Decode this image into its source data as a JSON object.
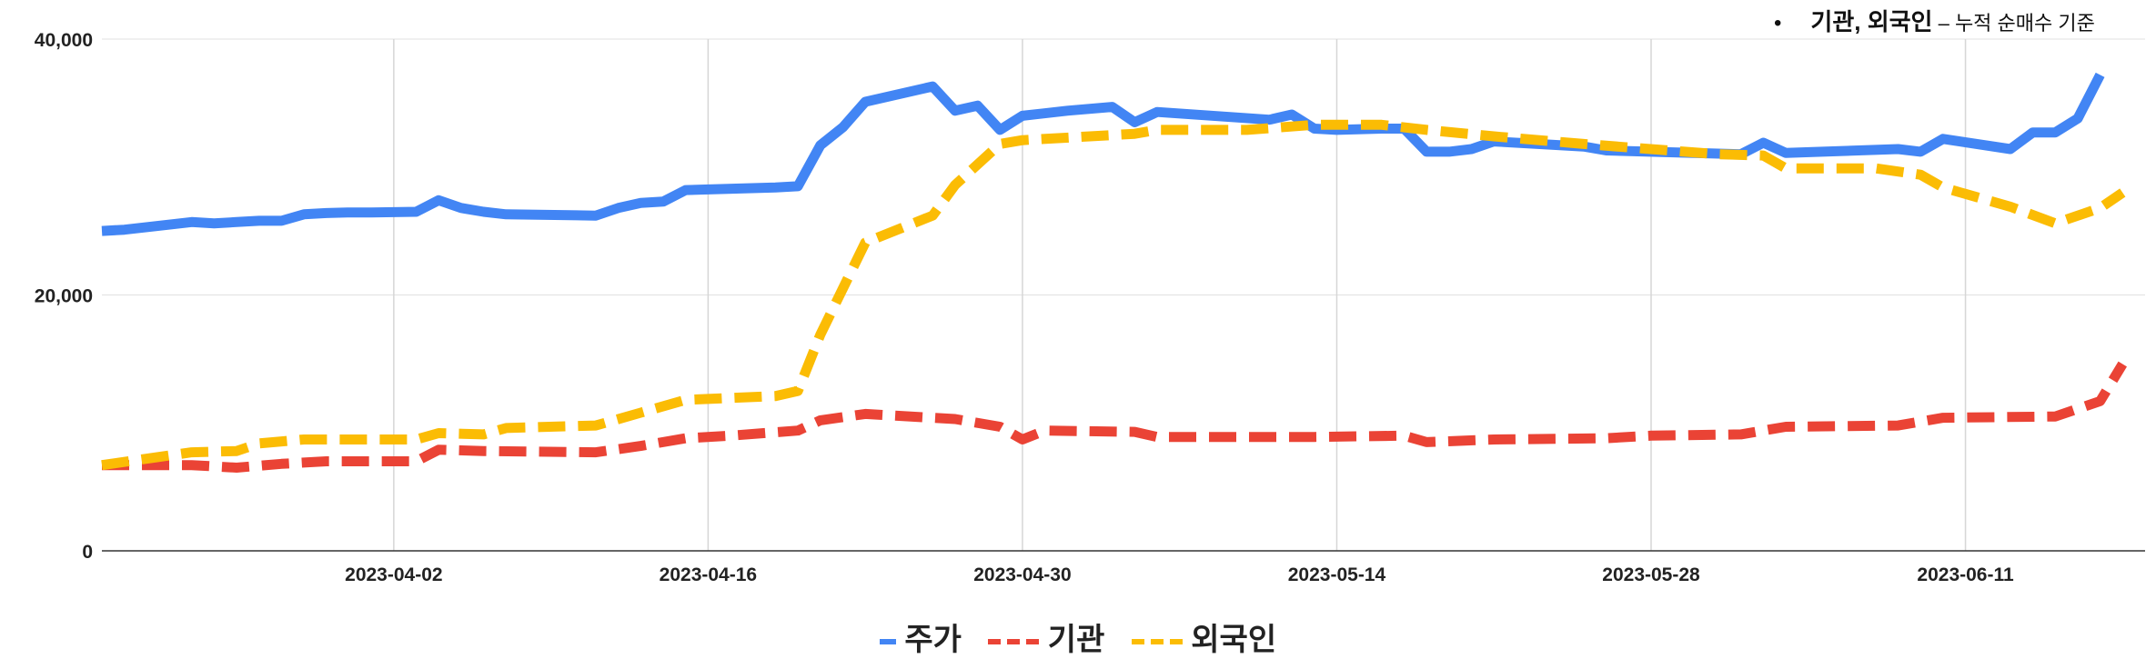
{
  "note": {
    "bullet": "•",
    "main": "기관, 외국인",
    "dash": " – ",
    "detail": "누적 순매수 기준"
  },
  "colors": {
    "stock": "#4285F4",
    "institution": "#EA4335",
    "foreign": "#FBBC04",
    "grid": "#e0e0e0"
  },
  "chart_data": {
    "type": "line",
    "x_axis": {
      "start": "2023-03-20",
      "end": "2023-06-19",
      "ticks": [
        "2023-04-02",
        "2023-04-16",
        "2023-04-30",
        "2023-05-14",
        "2023-05-28",
        "2023-06-11"
      ]
    },
    "y_axis": {
      "ylim": [
        0,
        40000
      ],
      "ticks": [
        0,
        20000,
        40000
      ],
      "tick_labels": [
        "0",
        "20,000",
        "40,000"
      ]
    },
    "grid": true,
    "legend_position": "bottom",
    "series": [
      {
        "name": "주가",
        "style": "solid",
        "points": [
          [
            "2023-03-20",
            25000
          ],
          [
            "2023-03-21",
            25100
          ],
          [
            "2023-03-24",
            25700
          ],
          [
            "2023-03-25",
            25600
          ],
          [
            "2023-03-26",
            25700
          ],
          [
            "2023-03-27",
            25800
          ],
          [
            "2023-03-28",
            25800
          ],
          [
            "2023-03-29",
            26300
          ],
          [
            "2023-03-30",
            26400
          ],
          [
            "2023-03-31",
            26450
          ],
          [
            "2023-04-01",
            26450
          ],
          [
            "2023-04-03",
            26500
          ],
          [
            "2023-04-04",
            27400
          ],
          [
            "2023-04-05",
            26800
          ],
          [
            "2023-04-06",
            26500
          ],
          [
            "2023-04-07",
            26300
          ],
          [
            "2023-04-11",
            26200
          ],
          [
            "2023-04-12",
            26800
          ],
          [
            "2023-04-13",
            27200
          ],
          [
            "2023-04-14",
            27300
          ],
          [
            "2023-04-15",
            28200
          ],
          [
            "2023-04-19",
            28400
          ],
          [
            "2023-04-20",
            28500
          ],
          [
            "2023-04-21",
            31700
          ],
          [
            "2023-04-22",
            33100
          ],
          [
            "2023-04-23",
            35100
          ],
          [
            "2023-04-26",
            36300
          ],
          [
            "2023-04-27",
            34400
          ],
          [
            "2023-04-28",
            34800
          ],
          [
            "2023-04-29",
            32900
          ],
          [
            "2023-04-30",
            34000
          ],
          [
            "2023-05-02",
            34400
          ],
          [
            "2023-05-04",
            34700
          ],
          [
            "2023-05-05",
            33500
          ],
          [
            "2023-05-06",
            34300
          ],
          [
            "2023-05-11",
            33700
          ],
          [
            "2023-05-12",
            34100
          ],
          [
            "2023-05-13",
            33000
          ],
          [
            "2023-05-14",
            32900
          ],
          [
            "2023-05-16",
            33000
          ],
          [
            "2023-05-17",
            33000
          ],
          [
            "2023-05-18",
            31200
          ],
          [
            "2023-05-19",
            31200
          ],
          [
            "2023-05-20",
            31400
          ],
          [
            "2023-05-21",
            32000
          ],
          [
            "2023-05-25",
            31600
          ],
          [
            "2023-05-26",
            31300
          ],
          [
            "2023-06-01",
            31000
          ],
          [
            "2023-06-02",
            31900
          ],
          [
            "2023-06-03",
            31100
          ],
          [
            "2023-06-08",
            31400
          ],
          [
            "2023-06-09",
            31200
          ],
          [
            "2023-06-10",
            32200
          ],
          [
            "2023-06-13",
            31400
          ],
          [
            "2023-06-14",
            32700
          ],
          [
            "2023-06-15",
            32700
          ],
          [
            "2023-06-16",
            33800
          ],
          [
            "2023-06-17",
            37200
          ]
        ]
      },
      {
        "name": "기관",
        "style": "dashed",
        "points": [
          [
            "2023-03-20",
            6700
          ],
          [
            "2023-03-24",
            6700
          ],
          [
            "2023-03-26",
            6500
          ],
          [
            "2023-03-28",
            6800
          ],
          [
            "2023-03-30",
            7000
          ],
          [
            "2023-04-01",
            7000
          ],
          [
            "2023-04-03",
            7000
          ],
          [
            "2023-04-04",
            7900
          ],
          [
            "2023-04-06",
            7800
          ],
          [
            "2023-04-11",
            7700
          ],
          [
            "2023-04-13",
            8200
          ],
          [
            "2023-04-15",
            8800
          ],
          [
            "2023-04-17",
            9000
          ],
          [
            "2023-04-20",
            9400
          ],
          [
            "2023-04-21",
            10200
          ],
          [
            "2023-04-23",
            10700
          ],
          [
            "2023-04-27",
            10300
          ],
          [
            "2023-04-29",
            9700
          ],
          [
            "2023-04-30",
            8700
          ],
          [
            "2023-05-01",
            9400
          ],
          [
            "2023-05-05",
            9300
          ],
          [
            "2023-05-06",
            8900
          ],
          [
            "2023-05-11",
            8900
          ],
          [
            "2023-05-13",
            8900
          ],
          [
            "2023-05-17",
            9000
          ],
          [
            "2023-05-18",
            8500
          ],
          [
            "2023-05-21",
            8700
          ],
          [
            "2023-05-26",
            8800
          ],
          [
            "2023-05-28",
            9000
          ],
          [
            "2023-06-01",
            9100
          ],
          [
            "2023-06-03",
            9700
          ],
          [
            "2023-06-08",
            9800
          ],
          [
            "2023-06-10",
            10400
          ],
          [
            "2023-06-15",
            10500
          ],
          [
            "2023-06-17",
            11700
          ],
          [
            "2023-06-18",
            14600
          ]
        ]
      },
      {
        "name": "외국인",
        "style": "dashed",
        "points": [
          [
            "2023-03-20",
            6700
          ],
          [
            "2023-03-24",
            7700
          ],
          [
            "2023-03-26",
            7800
          ],
          [
            "2023-03-27",
            8400
          ],
          [
            "2023-03-29",
            8700
          ],
          [
            "2023-04-01",
            8700
          ],
          [
            "2023-04-03",
            8700
          ],
          [
            "2023-04-04",
            9200
          ],
          [
            "2023-04-06",
            9100
          ],
          [
            "2023-04-07",
            9600
          ],
          [
            "2023-04-11",
            9800
          ],
          [
            "2023-04-13",
            10800
          ],
          [
            "2023-04-15",
            11800
          ],
          [
            "2023-04-19",
            12100
          ],
          [
            "2023-04-20",
            12500
          ],
          [
            "2023-04-21",
            16900
          ],
          [
            "2023-04-23",
            24100
          ],
          [
            "2023-04-26",
            26200
          ],
          [
            "2023-04-27",
            28600
          ],
          [
            "2023-04-29",
            31800
          ],
          [
            "2023-04-30",
            32100
          ],
          [
            "2023-05-03",
            32400
          ],
          [
            "2023-05-05",
            32600
          ],
          [
            "2023-05-06",
            32900
          ],
          [
            "2023-05-10",
            32900
          ],
          [
            "2023-05-13",
            33300
          ],
          [
            "2023-05-16",
            33300
          ],
          [
            "2023-05-18",
            32900
          ],
          [
            "2023-05-21",
            32400
          ],
          [
            "2023-05-25",
            31800
          ],
          [
            "2023-05-31",
            31000
          ],
          [
            "2023-06-02",
            30900
          ],
          [
            "2023-06-03",
            29900
          ],
          [
            "2023-06-07",
            29900
          ],
          [
            "2023-06-09",
            29400
          ],
          [
            "2023-06-10",
            28400
          ],
          [
            "2023-06-13",
            26900
          ],
          [
            "2023-06-15",
            25600
          ],
          [
            "2023-06-17",
            26800
          ],
          [
            "2023-06-18",
            28000
          ]
        ]
      }
    ]
  }
}
